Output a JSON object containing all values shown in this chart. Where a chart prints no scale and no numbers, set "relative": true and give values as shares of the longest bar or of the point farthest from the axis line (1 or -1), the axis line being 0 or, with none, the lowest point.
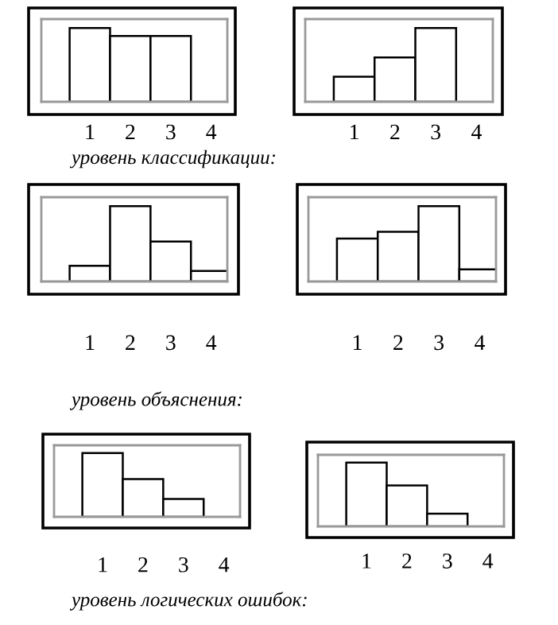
{
  "chart_data": [
    {
      "type": "bar",
      "relative": true,
      "color": "#ffffff",
      "categories": [
        "1",
        "2",
        "3",
        "4"
      ],
      "values": [
        1,
        0.89,
        0.89,
        null
      ],
      "annotations": [
        "уровень классификации:"
      ]
    },
    {
      "type": "bar",
      "relative": true,
      "color": "#ffffff",
      "categories": [
        "1",
        "2",
        "3",
        "4"
      ],
      "values": [
        0.34,
        0.6,
        1,
        null
      ]
    },
    {
      "type": "bar",
      "relative": true,
      "color": "#ffffff",
      "categories": [
        "1",
        "2",
        "3",
        "4"
      ],
      "values": [
        0.21,
        1,
        0.53,
        0.14
      ],
      "annotations": [
        "уровень объяснения:"
      ]
    },
    {
      "type": "bar",
      "relative": true,
      "color": "#ffffff",
      "categories": [
        "1",
        "2",
        "3",
        "4"
      ],
      "values": [
        0.57,
        0.66,
        1,
        0.16
      ]
    },
    {
      "type": "bar",
      "relative": true,
      "color": "#ffffff",
      "categories": [
        "1",
        "2",
        "3",
        "4"
      ],
      "values": [
        1,
        0.59,
        0.28,
        null
      ],
      "annotations": [
        "уровень логических ошибок:"
      ]
    },
    {
      "type": "bar",
      "relative": true,
      "color": "#ffffff",
      "categories": [
        "1",
        "2",
        "3",
        "4"
      ],
      "values": [
        1,
        0.64,
        0.2,
        null
      ]
    }
  ]
}
